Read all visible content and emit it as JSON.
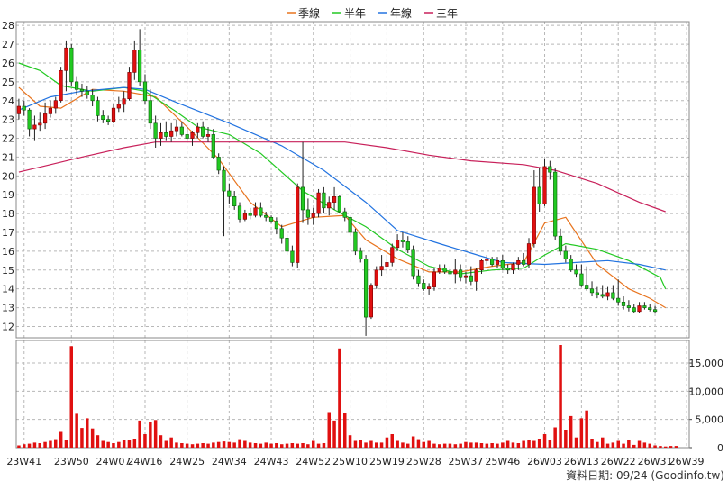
{
  "chart_data": [
    {
      "type": "candlestick",
      "legend": {
        "placement": "top-center",
        "entries": [
          {
            "name": "季線",
            "color": "#e8741e"
          },
          {
            "name": "半年",
            "color": "#22c922"
          },
          {
            "name": "年線",
            "color": "#2273e0"
          },
          {
            "name": "三年",
            "color": "#c8205a"
          }
        ]
      },
      "ylim": [
        11.4,
        28.2
      ],
      "y_ticks": [
        "12",
        "13",
        "14",
        "15",
        "16",
        "17",
        "18",
        "19",
        "20",
        "21",
        "22",
        "23",
        "24",
        "25",
        "26",
        "27",
        "28"
      ],
      "grid": true,
      "colors": {
        "up": "#e01010",
        "down": "#22c922",
        "up_border": "#7a0000",
        "down_border": "#0a5a0a",
        "wick": "#222222"
      },
      "candles": [
        [
          23.3,
          24.1,
          23.0,
          23.7
        ],
        [
          23.7,
          24.0,
          23.2,
          23.5
        ],
        [
          23.5,
          23.6,
          22.1,
          22.5
        ],
        [
          22.5,
          23.2,
          21.9,
          22.7
        ],
        [
          22.7,
          23.4,
          22.4,
          22.8
        ],
        [
          22.8,
          23.9,
          22.5,
          23.3
        ],
        [
          23.3,
          24.0,
          23.1,
          23.6
        ],
        [
          23.6,
          24.2,
          23.3,
          24.0
        ],
        [
          24.0,
          25.8,
          23.9,
          25.6
        ],
        [
          25.6,
          27.2,
          24.5,
          26.8
        ],
        [
          26.8,
          27.0,
          24.8,
          25.0
        ],
        [
          25.0,
          25.3,
          24.3,
          24.6
        ],
        [
          24.6,
          24.9,
          24.2,
          24.5
        ],
        [
          24.5,
          24.8,
          24.1,
          24.3
        ],
        [
          24.3,
          24.6,
          23.7,
          24.0
        ],
        [
          24.0,
          24.2,
          22.9,
          23.2
        ],
        [
          23.2,
          23.5,
          22.8,
          23.0
        ],
        [
          23.0,
          23.2,
          22.7,
          22.9
        ],
        [
          22.9,
          23.8,
          22.8,
          23.6
        ],
        [
          23.6,
          24.2,
          23.4,
          23.8
        ],
        [
          23.8,
          24.5,
          23.4,
          24.1
        ],
        [
          24.1,
          25.8,
          24.0,
          25.5
        ],
        [
          25.5,
          27.2,
          25.1,
          26.7
        ],
        [
          26.7,
          27.8,
          24.8,
          25.0
        ],
        [
          25.0,
          25.4,
          23.8,
          24.0
        ],
        [
          24.0,
          24.6,
          22.5,
          22.8
        ],
        [
          22.8,
          23.2,
          21.5,
          22.0
        ],
        [
          22.0,
          22.8,
          21.6,
          22.3
        ],
        [
          22.3,
          22.9,
          21.9,
          22.1
        ],
        [
          22.1,
          22.8,
          21.8,
          22.4
        ],
        [
          22.4,
          23.0,
          22.1,
          22.6
        ],
        [
          22.6,
          22.9,
          22.1,
          22.2
        ],
        [
          22.2,
          22.6,
          21.9,
          22.0
        ],
        [
          22.0,
          22.4,
          21.6,
          22.3
        ],
        [
          22.3,
          22.8,
          22.0,
          22.6
        ],
        [
          22.6,
          22.9,
          22.0,
          22.1
        ],
        [
          22.1,
          22.6,
          21.8,
          22.2
        ],
        [
          22.2,
          22.5,
          20.9,
          21.0
        ],
        [
          21.0,
          21.2,
          20.1,
          20.3
        ],
        [
          20.3,
          20.5,
          16.8,
          19.2
        ],
        [
          19.2,
          19.6,
          18.5,
          18.9
        ],
        [
          18.9,
          19.2,
          18.2,
          18.4
        ],
        [
          18.4,
          18.6,
          17.5,
          17.7
        ],
        [
          17.7,
          18.2,
          17.6,
          18.0
        ],
        [
          18.0,
          18.3,
          17.7,
          17.9
        ],
        [
          17.9,
          18.6,
          17.8,
          18.3
        ],
        [
          18.3,
          18.6,
          17.8,
          17.9
        ],
        [
          17.9,
          18.1,
          17.6,
          17.8
        ],
        [
          17.8,
          17.9,
          17.5,
          17.6
        ],
        [
          17.6,
          17.8,
          16.9,
          17.2
        ],
        [
          17.2,
          17.4,
          16.4,
          16.7
        ],
        [
          16.7,
          16.9,
          15.8,
          16.0
        ],
        [
          16.0,
          16.3,
          15.2,
          15.4
        ],
        [
          15.4,
          19.6,
          15.1,
          19.4
        ],
        [
          19.4,
          21.8,
          17.5,
          18.2
        ],
        [
          18.2,
          18.8,
          17.4,
          17.8
        ],
        [
          17.8,
          18.3,
          17.4,
          18.0
        ],
        [
          18.0,
          19.3,
          17.8,
          19.1
        ],
        [
          19.1,
          19.4,
          18.0,
          18.3
        ],
        [
          18.3,
          18.9,
          17.9,
          18.6
        ],
        [
          18.6,
          19.4,
          18.2,
          18.9
        ],
        [
          18.9,
          19.0,
          18.0,
          18.1
        ],
        [
          18.1,
          18.3,
          17.6,
          17.8
        ],
        [
          17.8,
          17.9,
          16.8,
          17.0
        ],
        [
          17.0,
          17.2,
          15.8,
          16.0
        ],
        [
          16.0,
          16.2,
          15.4,
          15.6
        ],
        [
          15.6,
          15.8,
          11.5,
          12.5
        ],
        [
          12.5,
          14.3,
          12.4,
          14.2
        ],
        [
          14.2,
          15.2,
          14.0,
          15.0
        ],
        [
          15.0,
          15.8,
          14.7,
          15.2
        ],
        [
          15.2,
          15.8,
          14.8,
          15.4
        ],
        [
          15.4,
          16.4,
          15.2,
          16.2
        ],
        [
          16.2,
          16.9,
          16.0,
          16.6
        ],
        [
          16.6,
          17.0,
          16.2,
          16.5
        ],
        [
          16.5,
          16.8,
          15.9,
          16.1
        ],
        [
          16.1,
          16.3,
          14.5,
          14.7
        ],
        [
          14.7,
          15.0,
          14.1,
          14.3
        ],
        [
          14.3,
          14.5,
          13.9,
          14.0
        ],
        [
          14.0,
          14.3,
          13.7,
          14.1
        ],
        [
          14.1,
          15.1,
          13.9,
          14.9
        ],
        [
          14.9,
          15.3,
          14.8,
          15.1
        ],
        [
          15.1,
          15.3,
          14.8,
          14.9
        ],
        [
          14.9,
          15.2,
          14.6,
          14.8
        ],
        [
          14.8,
          15.6,
          14.3,
          15.0
        ],
        [
          15.0,
          15.3,
          14.4,
          14.6
        ],
        [
          14.6,
          14.9,
          14.3,
          14.7
        ],
        [
          14.7,
          15.2,
          14.2,
          14.4
        ],
        [
          14.4,
          15.1,
          13.9,
          15.0
        ],
        [
          15.0,
          15.6,
          14.8,
          15.5
        ],
        [
          15.5,
          15.8,
          15.3,
          15.6
        ],
        [
          15.6,
          15.7,
          15.2,
          15.3
        ],
        [
          15.3,
          15.7,
          15.1,
          15.5
        ],
        [
          15.5,
          15.8,
          15.0,
          15.1
        ],
        [
          15.1,
          15.3,
          14.8,
          15.0
        ],
        [
          15.0,
          15.4,
          14.8,
          15.3
        ],
        [
          15.3,
          15.7,
          15.0,
          15.5
        ],
        [
          15.5,
          15.9,
          15.2,
          15.3
        ],
        [
          15.3,
          16.7,
          15.1,
          16.4
        ],
        [
          16.4,
          20.3,
          16.2,
          19.4
        ],
        [
          19.4,
          20.4,
          18.1,
          18.5
        ],
        [
          18.5,
          20.9,
          18.4,
          20.5
        ],
        [
          20.5,
          20.8,
          19.8,
          20.2
        ],
        [
          20.2,
          20.4,
          16.6,
          16.8
        ],
        [
          16.8,
          17.2,
          15.8,
          16.0
        ],
        [
          16.0,
          16.3,
          15.4,
          15.6
        ],
        [
          15.6,
          15.8,
          14.9,
          15.0
        ],
        [
          15.0,
          15.3,
          14.6,
          14.8
        ],
        [
          14.8,
          15.3,
          14.1,
          14.2
        ],
        [
          14.2,
          15.2,
          13.9,
          14.0
        ],
        [
          14.0,
          14.4,
          13.6,
          13.8
        ],
        [
          13.8,
          14.1,
          13.5,
          13.7
        ],
        [
          13.7,
          14.2,
          13.5,
          13.6
        ],
        [
          13.6,
          14.1,
          13.4,
          13.8
        ],
        [
          13.8,
          14.2,
          13.4,
          13.5
        ],
        [
          13.5,
          14.5,
          13.1,
          13.3
        ],
        [
          13.3,
          13.6,
          12.9,
          13.1
        ],
        [
          13.1,
          13.4,
          12.8,
          13.0
        ],
        [
          13.0,
          13.2,
          12.7,
          12.8
        ],
        [
          12.8,
          13.3,
          12.7,
          13.1
        ],
        [
          13.1,
          13.3,
          12.9,
          13.0
        ],
        [
          13.0,
          13.2,
          12.8,
          12.9
        ],
        [
          12.9,
          13.1,
          12.7,
          12.8
        ]
      ],
      "moving_averages": {
        "季線": [
          [
            0,
            24.7
          ],
          [
            4,
            23.7
          ],
          [
            8,
            23.6
          ],
          [
            14,
            24.6
          ],
          [
            20,
            24.5
          ],
          [
            26,
            24.2
          ],
          [
            32,
            22.6
          ],
          [
            38,
            20.9
          ],
          [
            44,
            18.6
          ],
          [
            50,
            17.3
          ],
          [
            56,
            17.8
          ],
          [
            62,
            17.9
          ],
          [
            66,
            16.6
          ],
          [
            72,
            15.6
          ],
          [
            78,
            14.9
          ],
          [
            84,
            14.9
          ],
          [
            90,
            15.2
          ],
          [
            96,
            15.4
          ],
          [
            100,
            17.5
          ],
          [
            104,
            17.8
          ],
          [
            110,
            15.3
          ],
          [
            116,
            14.0
          ],
          [
            120,
            13.5
          ],
          [
            123,
            13.0
          ]
        ],
        "半年": [
          [
            0,
            26.0
          ],
          [
            4,
            25.6
          ],
          [
            8,
            24.8
          ],
          [
            14,
            24.5
          ],
          [
            20,
            24.7
          ],
          [
            24,
            24.5
          ],
          [
            30,
            23.4
          ],
          [
            34,
            22.6
          ],
          [
            40,
            22.2
          ],
          [
            46,
            21.2
          ],
          [
            54,
            19.2
          ],
          [
            60,
            18.2
          ],
          [
            66,
            17.3
          ],
          [
            72,
            16.1
          ],
          [
            78,
            15.2
          ],
          [
            84,
            14.8
          ],
          [
            90,
            15.0
          ],
          [
            96,
            15.1
          ],
          [
            100,
            15.8
          ],
          [
            104,
            16.4
          ],
          [
            110,
            16.1
          ],
          [
            116,
            15.5
          ],
          [
            122,
            14.6
          ],
          [
            123,
            14.0
          ]
        ],
        "年線": [
          [
            0,
            23.5
          ],
          [
            6,
            24.2
          ],
          [
            12,
            24.5
          ],
          [
            20,
            24.7
          ],
          [
            24,
            24.6
          ],
          [
            30,
            23.9
          ],
          [
            40,
            22.8
          ],
          [
            50,
            21.6
          ],
          [
            58,
            20.3
          ],
          [
            66,
            18.6
          ],
          [
            72,
            17.1
          ],
          [
            80,
            16.4
          ],
          [
            86,
            15.9
          ],
          [
            92,
            15.4
          ],
          [
            100,
            15.3
          ],
          [
            106,
            15.4
          ],
          [
            112,
            15.5
          ],
          [
            118,
            15.3
          ],
          [
            123,
            15.0
          ]
        ],
        "三年": [
          [
            0,
            20.2
          ],
          [
            6,
            20.6
          ],
          [
            12,
            21.0
          ],
          [
            20,
            21.5
          ],
          [
            26,
            21.8
          ],
          [
            36,
            21.8
          ],
          [
            50,
            21.8
          ],
          [
            62,
            21.8
          ],
          [
            70,
            21.5
          ],
          [
            78,
            21.1
          ],
          [
            86,
            20.8
          ],
          [
            96,
            20.6
          ],
          [
            102,
            20.3
          ],
          [
            110,
            19.6
          ],
          [
            118,
            18.6
          ],
          [
            123,
            18.1
          ]
        ]
      }
    },
    {
      "type": "bar",
      "ylim": [
        0,
        19000
      ],
      "y_ticks": [
        {
          "v": 0,
          "label": "0"
        },
        {
          "v": 5000,
          "label": "5,000"
        },
        {
          "v": 10000,
          "label": "10,000"
        },
        {
          "v": 15000,
          "label": "15,000"
        }
      ],
      "x_ticks": [
        {
          "i": 1,
          "label": "23W41"
        },
        {
          "i": 10,
          "label": "23W50"
        },
        {
          "i": 18,
          "label": "24W07"
        },
        {
          "i": 24,
          "label": "24W16"
        },
        {
          "i": 32,
          "label": "24W25"
        },
        {
          "i": 40,
          "label": "24W34"
        },
        {
          "i": 48,
          "label": "24W43"
        },
        {
          "i": 56,
          "label": "24W52"
        },
        {
          "i": 63,
          "label": "25W10"
        },
        {
          "i": 70,
          "label": "25W19"
        },
        {
          "i": 77,
          "label": "25W28"
        },
        {
          "i": 85,
          "label": "25W37"
        },
        {
          "i": 92,
          "label": "25W46"
        },
        {
          "i": 100,
          "label": "26W03"
        },
        {
          "i": 107,
          "label": "26W13"
        },
        {
          "i": 114,
          "label": "26W22"
        },
        {
          "i": 121,
          "label": "26W31"
        },
        {
          "i": 127,
          "label": "26W39"
        }
      ],
      "color": "#e01010",
      "values": [
        400,
        600,
        700,
        900,
        800,
        1000,
        1200,
        1500,
        2800,
        1300,
        18000,
        6000,
        3500,
        5200,
        3400,
        2200,
        1200,
        1000,
        800,
        1000,
        1400,
        1300,
        1600,
        4800,
        2400,
        4500,
        4900,
        2200,
        1200,
        1800,
        900,
        800,
        700,
        600,
        700,
        800,
        700,
        900,
        1000,
        1100,
        1000,
        900,
        1500,
        1200,
        900,
        800,
        700,
        900,
        700,
        800,
        600,
        700,
        800,
        700,
        800,
        600,
        1200,
        700,
        800,
        6300,
        4800,
        17600,
        6200,
        2200,
        1200,
        1400,
        900,
        1200,
        900,
        900,
        1800,
        2400,
        1200,
        900,
        700,
        2000,
        1500,
        1000,
        1200,
        700,
        600,
        700,
        700,
        600,
        700,
        1000,
        900,
        900,
        800,
        700,
        800,
        700,
        900,
        1200,
        900,
        800,
        1200,
        1300,
        1200,
        1600,
        2400,
        1300,
        3600,
        18200,
        3200,
        5600,
        1800,
        5200,
        6600,
        1600,
        1000,
        1800,
        700,
        900,
        1200,
        700,
        1300,
        500,
        1200,
        900,
        700,
        400,
        300,
        200,
        300,
        300
      ]
    },
    {
      "type": "footer",
      "text": "資料日期: 09/24  (Goodinfo.tw)"
    }
  ]
}
